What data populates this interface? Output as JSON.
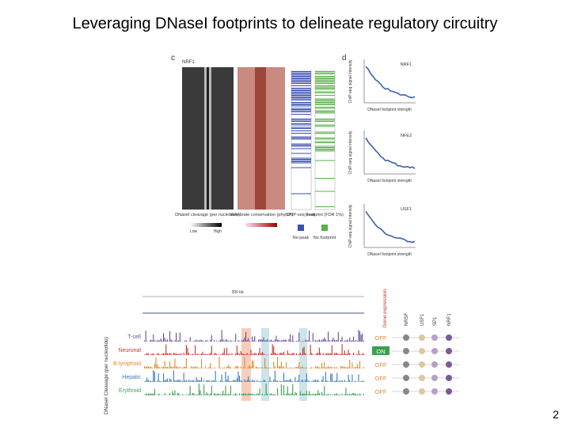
{
  "title": "Leveraging DNaseI footprints to delineate regulatory circuitry",
  "page_number": "2",
  "figure": {
    "panel_c": {
      "letter": "c",
      "factor": "NRF1",
      "heatmap_1": "DNaseI cleavage (per nucleotide)",
      "heatmap_2": "Vertebrate conservation (phyloP)",
      "column_3": "ChIP-seq peak",
      "column_4": "Footprint (FDR 1%)",
      "low": "Low",
      "high": "High",
      "no_peak": "No peak",
      "no_footprint": "No footprint"
    },
    "panel_d": {
      "letter": "d",
      "y_label": "ChIP-seq signal intensity",
      "x_label": "DNaseI footprint strength",
      "factors": [
        "NRF1",
        "NFE2",
        "USF1"
      ]
    },
    "panel_bottom": {
      "scale": "200 kb",
      "y_label": "DNaseI Cleavage (per nucleotide)",
      "expression_label": "Gene expression",
      "tissues": [
        "T-cell",
        "Neuronal",
        "B-lymphoid",
        "Hepatic",
        "Erythroid"
      ],
      "states": [
        "OFF",
        "ON",
        "OFF",
        "OFF",
        "OFF"
      ],
      "factors": [
        "NRSF",
        "USF1",
        "SP1",
        "NRF1"
      ]
    }
  }
}
